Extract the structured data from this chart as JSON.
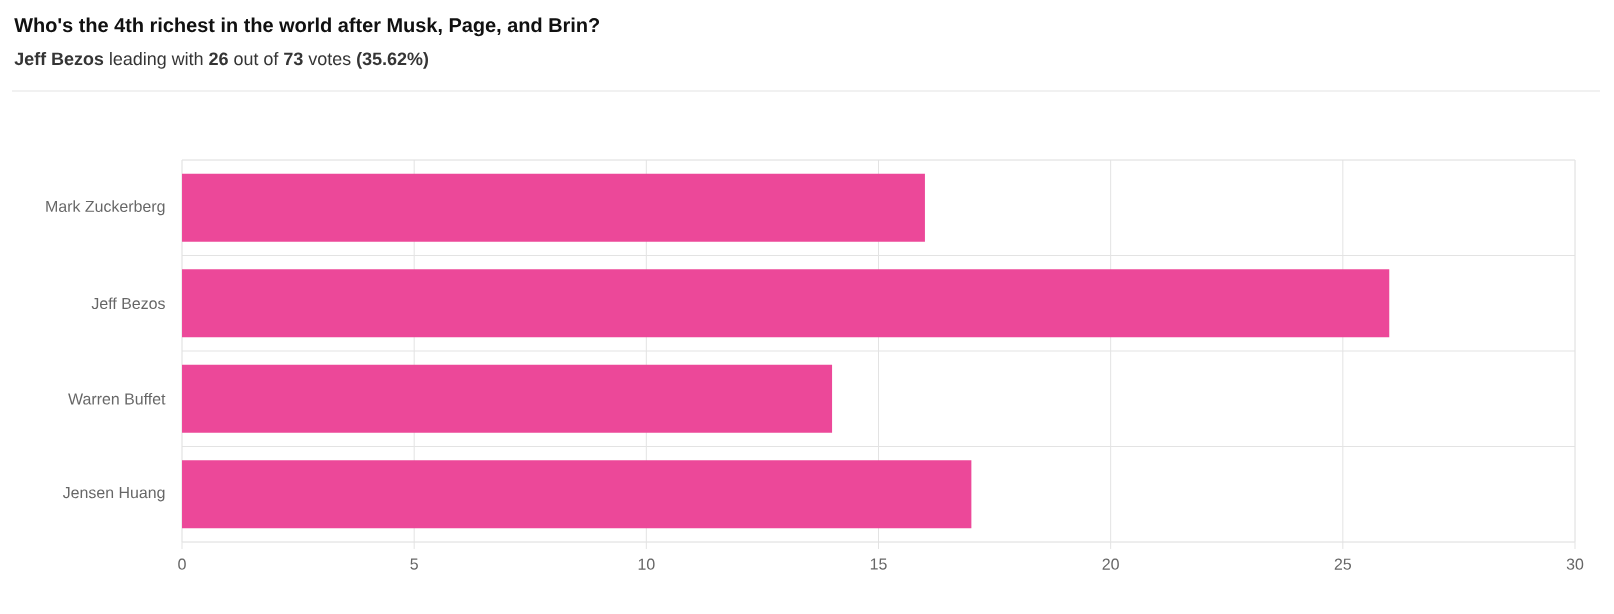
{
  "chart_data": {
    "type": "bar",
    "orientation": "horizontal",
    "title": "Who's the 4th richest in the world after Musk, Page, and Brin?",
    "subtitle": "**Jeff Bezos** leading with **26** out of **73** votes **(35.62%)**",
    "categories": [
      "Mark Zuckerberg",
      "Jeff Bezos",
      "Warren Buffet",
      "Jensen Huang"
    ],
    "values": [
      16,
      26,
      14,
      17
    ],
    "color": "#ec4899",
    "xlim": [
      0,
      30
    ],
    "xticks": [
      0,
      5,
      10,
      15,
      20,
      25,
      30
    ],
    "grid": true
  }
}
